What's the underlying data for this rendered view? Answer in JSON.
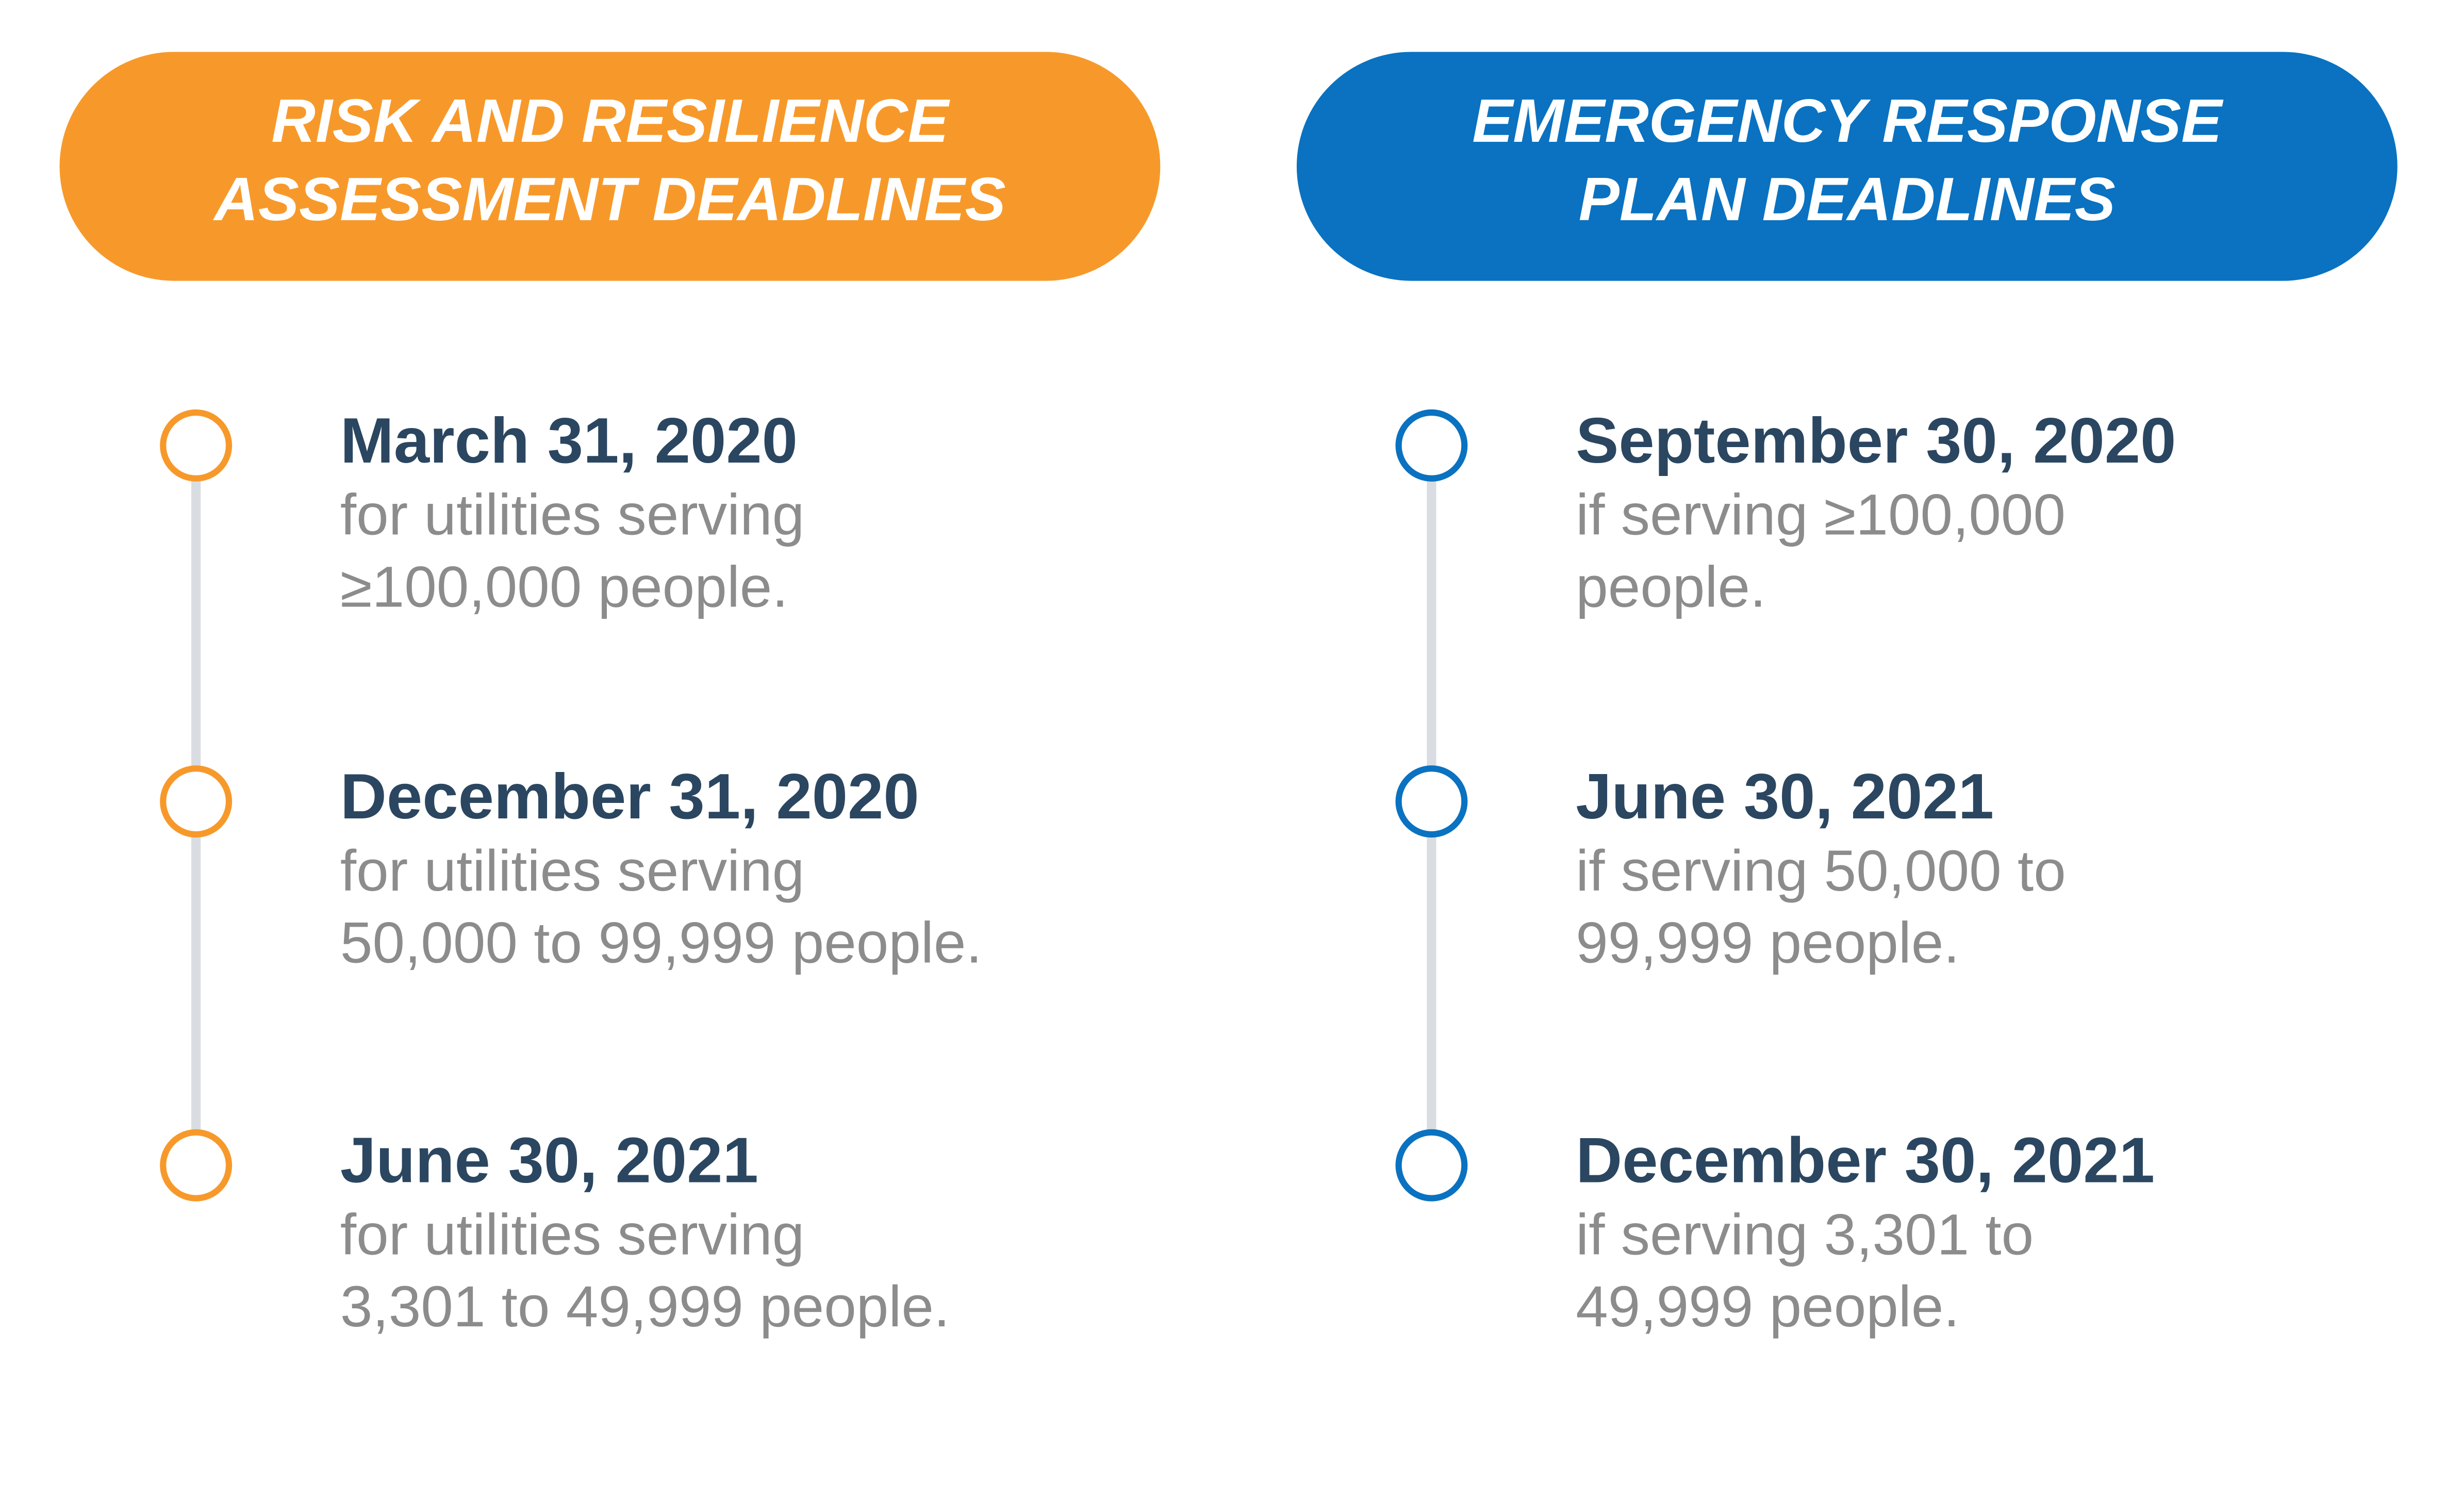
{
  "columns": [
    {
      "title": [
        "RISK AND RESILIENCE",
        "ASSESSMENT DEADLINES"
      ],
      "items": [
        {
          "date": "March 31, 2020",
          "description": [
            "for utilities serving",
            "≥100,000 people."
          ]
        },
        {
          "date": "December 31, 2020",
          "description": [
            "for utilities serving",
            "50,000 to 99,999 people."
          ]
        },
        {
          "date": "June 30, 2021",
          "description": [
            "for utilities serving",
            "3,301 to 49,999 people."
          ]
        }
      ]
    },
    {
      "title": [
        "EMERGENCY RESPONSE",
        "PLAN DEADLINES"
      ],
      "items": [
        {
          "date": "September 30, 2020",
          "description": [
            "if serving ≥100,000",
            "people."
          ]
        },
        {
          "date": "June 30, 2021",
          "description": [
            "if serving 50,000 to",
            "99,999 people."
          ]
        },
        {
          "date": "December 30, 2021",
          "description": [
            "if serving 3,301 to",
            "49,999 people."
          ]
        }
      ]
    }
  ]
}
